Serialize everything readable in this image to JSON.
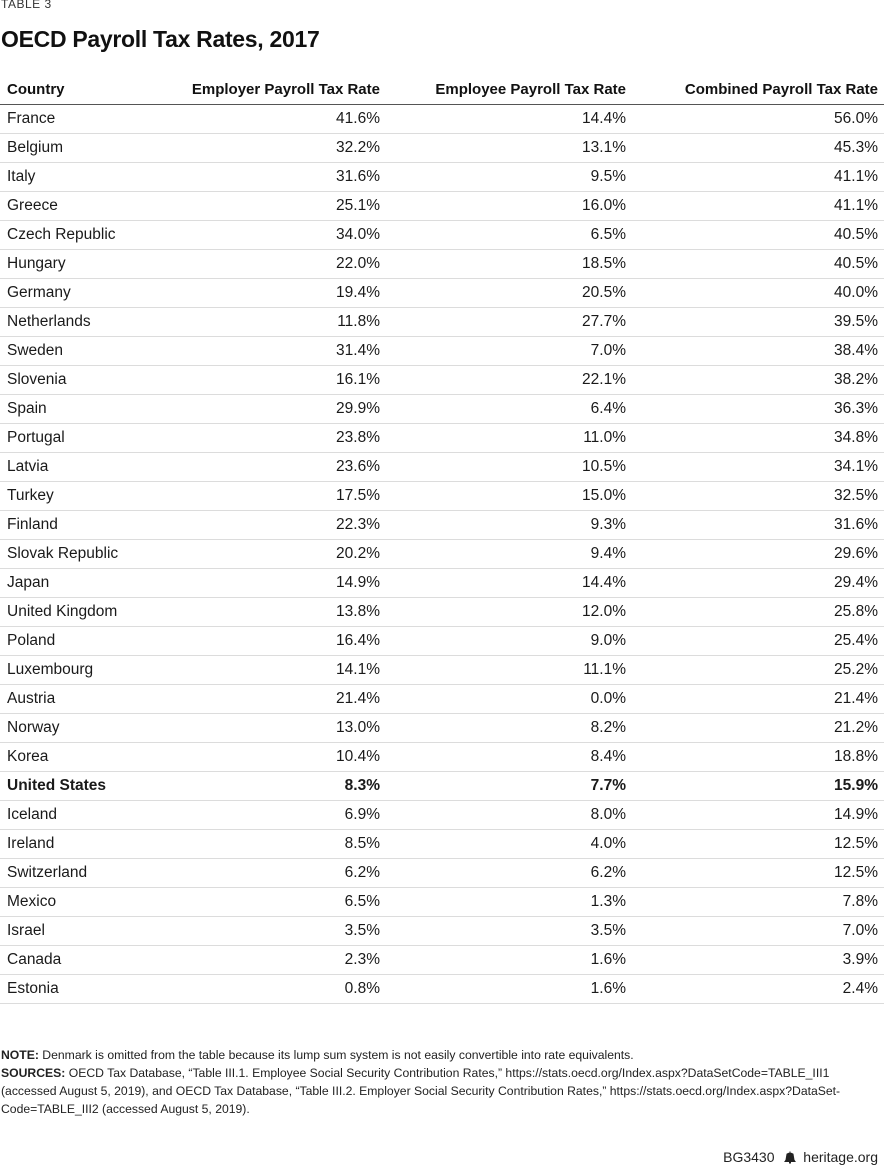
{
  "table_label": "TABLE 3",
  "title": "OECD Payroll Tax Rates, 2017",
  "headers": [
    "Country",
    "Employer Payroll Tax Rate",
    "Employee Payroll Tax Rate",
    "Combined Payroll Tax Rate"
  ],
  "rows": [
    {
      "country": "France",
      "employer": "41.6%",
      "employee": "14.4%",
      "combined": "56.0%"
    },
    {
      "country": "Belgium",
      "employer": "32.2%",
      "employee": "13.1%",
      "combined": "45.3%"
    },
    {
      "country": "Italy",
      "employer": "31.6%",
      "employee": "9.5%",
      "combined": "41.1%"
    },
    {
      "country": "Greece",
      "employer": "25.1%",
      "employee": "16.0%",
      "combined": "41.1%"
    },
    {
      "country": "Czech Republic",
      "employer": "34.0%",
      "employee": "6.5%",
      "combined": "40.5%"
    },
    {
      "country": "Hungary",
      "employer": "22.0%",
      "employee": "18.5%",
      "combined": "40.5%"
    },
    {
      "country": "Germany",
      "employer": "19.4%",
      "employee": "20.5%",
      "combined": "40.0%"
    },
    {
      "country": "Netherlands",
      "employer": "11.8%",
      "employee": "27.7%",
      "combined": "39.5%"
    },
    {
      "country": "Sweden",
      "employer": "31.4%",
      "employee": "7.0%",
      "combined": "38.4%"
    },
    {
      "country": "Slovenia",
      "employer": "16.1%",
      "employee": "22.1%",
      "combined": "38.2%"
    },
    {
      "country": "Spain",
      "employer": "29.9%",
      "employee": "6.4%",
      "combined": "36.3%"
    },
    {
      "country": "Portugal",
      "employer": "23.8%",
      "employee": "11.0%",
      "combined": "34.8%"
    },
    {
      "country": "Latvia",
      "employer": "23.6%",
      "employee": "10.5%",
      "combined": "34.1%"
    },
    {
      "country": "Turkey",
      "employer": "17.5%",
      "employee": "15.0%",
      "combined": "32.5%"
    },
    {
      "country": "Finland",
      "employer": "22.3%",
      "employee": "9.3%",
      "combined": "31.6%"
    },
    {
      "country": "Slovak Republic",
      "employer": "20.2%",
      "employee": "9.4%",
      "combined": "29.6%"
    },
    {
      "country": "Japan",
      "employer": "14.9%",
      "employee": "14.4%",
      "combined": "29.4%"
    },
    {
      "country": "United Kingdom",
      "employer": "13.8%",
      "employee": "12.0%",
      "combined": "25.8%"
    },
    {
      "country": "Poland",
      "employer": "16.4%",
      "employee": "9.0%",
      "combined": "25.4%"
    },
    {
      "country": "Luxembourg",
      "employer": "14.1%",
      "employee": "11.1%",
      "combined": "25.2%"
    },
    {
      "country": "Austria",
      "employer": "21.4%",
      "employee": "0.0%",
      "combined": "21.4%"
    },
    {
      "country": "Norway",
      "employer": "13.0%",
      "employee": "8.2%",
      "combined": "21.2%"
    },
    {
      "country": "Korea",
      "employer": "10.4%",
      "employee": "8.4%",
      "combined": "18.8%"
    },
    {
      "country": "United States",
      "employer": "8.3%",
      "employee": "7.7%",
      "combined": "15.9%",
      "bold": true
    },
    {
      "country": "Iceland",
      "employer": "6.9%",
      "employee": "8.0%",
      "combined": "14.9%"
    },
    {
      "country": "Ireland",
      "employer": "8.5%",
      "employee": "4.0%",
      "combined": "12.5%"
    },
    {
      "country": "Switzerland",
      "employer": "6.2%",
      "employee": "6.2%",
      "combined": "12.5%"
    },
    {
      "country": "Mexico",
      "employer": "6.5%",
      "employee": "1.3%",
      "combined": "7.8%"
    },
    {
      "country": "Israel",
      "employer": "3.5%",
      "employee": "3.5%",
      "combined": "7.0%"
    },
    {
      "country": "Canada",
      "employer": "2.3%",
      "employee": "1.6%",
      "combined": "3.9%"
    },
    {
      "country": "Estonia",
      "employer": "0.8%",
      "employee": "1.6%",
      "combined": "2.4%"
    }
  ],
  "note_label": "NOTE:",
  "note_text": " Denmark is omitted from the table because its lump sum system is not easily convertible into rate equivalents.",
  "sources_label": "SOURCES:",
  "sources_text": " OECD Tax Database, “Table III.1. Employee Social Security Contribution Rates,” https://stats.oecd.org/Index.aspx?DataSetCode=TABLE_III1 (accessed August 5, 2019), and OECD Tax Database, “Table III.2. Employer Social Security Contribution Rates,” https://stats.oecd.org/Index.aspx?DataSet-Code=TABLE_III2 (accessed August 5, 2019).",
  "footer_code": "BG3430",
  "footer_site": "heritage.org",
  "footer_icon": "liberty-bell-icon"
}
